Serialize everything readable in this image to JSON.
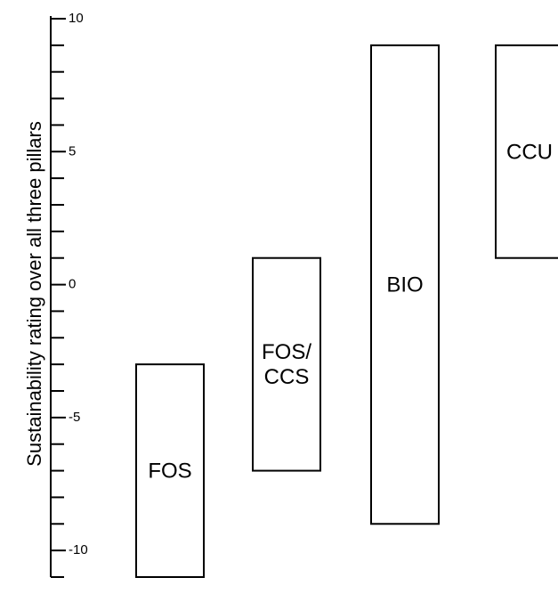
{
  "chart_data": {
    "type": "range",
    "ylabel": "Sustainability rating over all three pillars",
    "ylim": [
      -11,
      10.1
    ],
    "y_ticks": [
      10,
      5,
      0,
      -5,
      -10
    ],
    "y_tick_labels": [
      "10",
      "5",
      "0",
      "-5",
      "-10"
    ],
    "grid": false,
    "series": [
      {
        "name": "FOS",
        "label_lines": [
          "FOS"
        ],
        "min": -11,
        "max": -3
      },
      {
        "name": "FOS/CCS",
        "label_lines": [
          "FOS/",
          "CCS"
        ],
        "min": -7,
        "max": 1
      },
      {
        "name": "BIO",
        "label_lines": [
          "BIO"
        ],
        "min": -9,
        "max": 9
      },
      {
        "name": "CCU",
        "label_lines": [
          "CCU"
        ],
        "min": 1,
        "max": 9
      }
    ]
  }
}
